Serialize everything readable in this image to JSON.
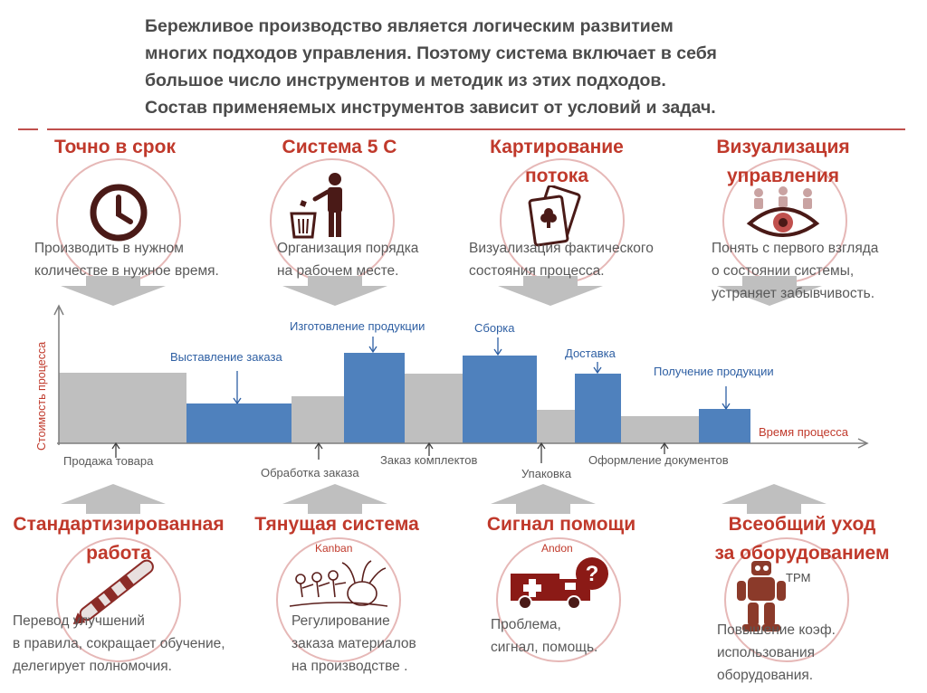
{
  "intro": {
    "lines": [
      "Бережливое производство является логическим развитием",
      "многих подходов управления. Поэтому система включает в себя",
      "большое число инструментов и методик из этих подходов.",
      "Состав применяемых  инструментов  зависит от условий и задач."
    ]
  },
  "tools_top": [
    {
      "title_lines": [
        "Точно в срок"
      ],
      "desc_lines": [
        "Производить в нужном",
        "количестве в нужное время."
      ],
      "icon": "clock-icon"
    },
    {
      "title_lines": [
        "Система 5 С"
      ],
      "desc_lines": [
        "Организация  порядка",
        "на рабочем месте."
      ],
      "icon": "trash-person-icon"
    },
    {
      "title_lines": [
        "Картирование",
        "потока"
      ],
      "desc_lines": [
        "Визуализация фактического",
        "состояния  процесса."
      ],
      "icon": "playing-cards-icon"
    },
    {
      "title_lines": [
        "Визуализация",
        "управления"
      ],
      "desc_lines": [
        "Понять с первого взгляда",
        "о состоянии системы,",
        "устраняет забывчивость."
      ],
      "icon": "eye-meeting-icon"
    }
  ],
  "tools_bottom": [
    {
      "title_lines": [
        "Стандартизированная",
        "работа"
      ],
      "sublabel": "",
      "desc_lines": [
        "Перевод  улучшений",
        "в правила, сокращает обучение,",
        "делегирует полномочия."
      ],
      "icon": "pen-icon"
    },
    {
      "title_lines": [
        "Тянущая система"
      ],
      "sublabel": "Kanban",
      "desc_lines": [
        "Регулирование",
        "заказа  материалов",
        "на производстве ."
      ],
      "icon": "turnip-pull-icon"
    },
    {
      "title_lines": [
        "Сигнал помощи"
      ],
      "sublabel": "Andon",
      "desc_lines": [
        "Проблема,",
        "сигнал, помощь."
      ],
      "icon": "ambulance-icon"
    },
    {
      "title_lines": [
        "Всеобщий уход",
        "за оборудованием"
      ],
      "sublabel": "TPM",
      "desc_lines": [
        "Повышение коэф.",
        "использования",
        "оборудования."
      ],
      "icon": "robot-icon"
    }
  ],
  "chart_data": {
    "type": "bar",
    "ylabel": "Стоимость процесса",
    "xlabel": "Время процесса",
    "segments": [
      {
        "label": "Продажа товара",
        "value": 78,
        "kind": "gray",
        "label_pos": "below"
      },
      {
        "label": "Выставление заказа",
        "value": 44,
        "kind": "blue",
        "label_pos": "above"
      },
      {
        "label": "Обработка заказа",
        "value": 52,
        "kind": "gray",
        "label_pos": "below"
      },
      {
        "label": "Изготовление продукции",
        "value": 100,
        "kind": "blue",
        "label_pos": "above"
      },
      {
        "label": "Заказ комплектов",
        "value": 77,
        "kind": "gray",
        "label_pos": "below"
      },
      {
        "label": "Сборка",
        "value": 97,
        "kind": "blue",
        "label_pos": "above"
      },
      {
        "label": "Упаковка",
        "value": 37,
        "kind": "gray",
        "label_pos": "below"
      },
      {
        "label": "Доставка",
        "value": 77,
        "kind": "blue",
        "label_pos": "above"
      },
      {
        "label": "Оформление документов",
        "value": 30,
        "kind": "gray",
        "label_pos": "below"
      },
      {
        "label": "Получение продукции",
        "value": 38,
        "kind": "blue",
        "label_pos": "above"
      }
    ],
    "colors": {
      "blue": "#4f81bd",
      "gray": "#bfbfbf",
      "label_blue": "#2e5fa3"
    }
  },
  "colors": {
    "accent": "#c0392b",
    "circle": "#e6b8b7",
    "arrow_gray": "#bfbfbf",
    "text": "#595959"
  }
}
